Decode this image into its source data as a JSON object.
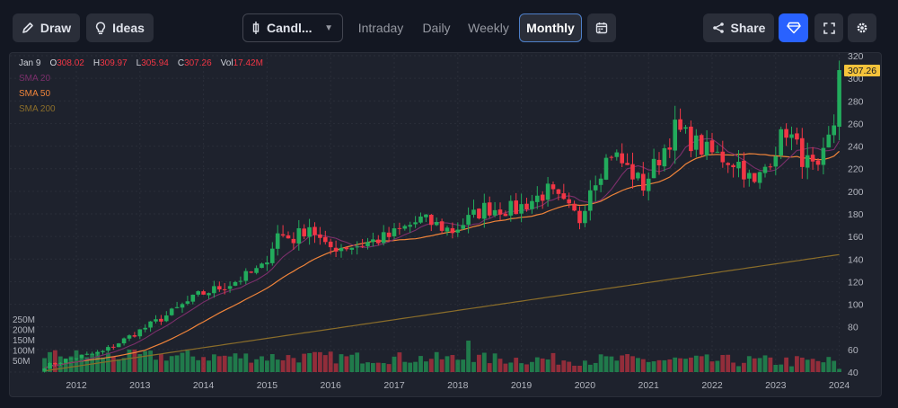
{
  "toolbar": {
    "draw_label": "Draw",
    "ideas_label": "Ideas",
    "chart_type": "Candl...",
    "timeframes": [
      "Intraday",
      "Daily",
      "Weekly",
      "Monthly"
    ],
    "active_timeframe": "Monthly",
    "share_label": "Share"
  },
  "legend": {
    "date": "Jan 9",
    "o_label": "O",
    "o_value": "308.02",
    "h_label": "H",
    "h_value": "309.97",
    "l_label": "L",
    "l_value": "305.94",
    "c_label": "C",
    "c_value": "307.26",
    "vol_label": "Vol",
    "vol_value": "17.42M",
    "sma": [
      "SMA 20",
      "SMA 50",
      "SMA 200"
    ]
  },
  "colors": {
    "up": "#26a69a",
    "up_candle": "#22ab5c",
    "down": "#f23645",
    "sma20": "#7b2f6b",
    "sma50": "#f0843a",
    "sma200": "#8a6d2a",
    "price_tag": "#f5c33b",
    "accent": "#2962ff"
  },
  "chart_data": {
    "type": "candlestick",
    "title": "",
    "last_price": "307.26",
    "y_ticks": [
      "320",
      "300",
      "280",
      "260",
      "240",
      "220",
      "200",
      "180",
      "160",
      "140",
      "120",
      "100",
      "80",
      "60",
      "40"
    ],
    "ylim": [
      40,
      320
    ],
    "x_ticks": [
      "2012",
      "2013",
      "2014",
      "2015",
      "2016",
      "2017",
      "2018",
      "2019",
      "2020",
      "2021",
      "2022",
      "2023",
      "2024"
    ],
    "volume_ticks": [
      "250M",
      "200M",
      "150M",
      "100M",
      "50M"
    ],
    "monthly_close_anchors": {
      "2011-07": 45,
      "2011-12": 52,
      "2012-06": 58,
      "2012-12": 74,
      "2013-06": 90,
      "2013-12": 108,
      "2014-06": 118,
      "2014-12": 132,
      "2015-03": 162,
      "2015-06": 158,
      "2015-09": 170,
      "2015-12": 150,
      "2016-06": 152,
      "2016-12": 160,
      "2017-06": 175,
      "2017-12": 165,
      "2018-06": 185,
      "2018-12": 184,
      "2019-06": 200,
      "2019-12": 175,
      "2020-02": 205,
      "2020-06": 235,
      "2020-12": 205,
      "2021-06": 255,
      "2021-12": 235,
      "2022-06": 225,
      "2022-09": 205,
      "2022-12": 230,
      "2023-03": 255,
      "2023-06": 230,
      "2023-09": 215,
      "2023-12": 260,
      "2024-01": 307.26
    }
  }
}
